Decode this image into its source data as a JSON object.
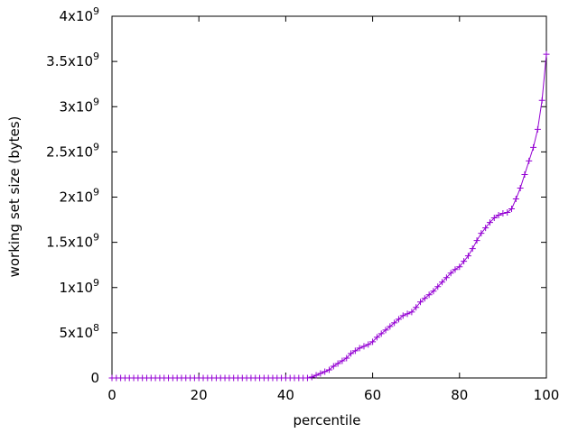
{
  "chart_data": {
    "type": "line",
    "xlabel": "percentile",
    "ylabel": "working set size (bytes)",
    "x": [
      0,
      1,
      2,
      3,
      4,
      5,
      6,
      7,
      8,
      9,
      10,
      11,
      12,
      13,
      14,
      15,
      16,
      17,
      18,
      19,
      20,
      21,
      22,
      23,
      24,
      25,
      26,
      27,
      28,
      29,
      30,
      31,
      32,
      33,
      34,
      35,
      36,
      37,
      38,
      39,
      40,
      41,
      42,
      43,
      44,
      45,
      46,
      47,
      48,
      49,
      50,
      51,
      52,
      53,
      54,
      55,
      56,
      57,
      58,
      59,
      60,
      61,
      62,
      63,
      64,
      65,
      66,
      67,
      68,
      69,
      70,
      71,
      72,
      73,
      74,
      75,
      76,
      77,
      78,
      79,
      80,
      81,
      82,
      83,
      84,
      85,
      86,
      87,
      88,
      89,
      90,
      91,
      92,
      93,
      94,
      95,
      96,
      97,
      98,
      99,
      100
    ],
    "series": [
      {
        "color": "#9400d3",
        "marker": "+",
        "values": [
          0,
          0,
          0,
          0,
          0,
          0,
          0,
          0,
          0,
          0,
          0,
          0,
          0,
          0,
          0,
          0,
          0,
          0,
          0,
          0,
          0,
          0,
          0,
          0,
          0,
          0,
          0,
          0,
          0,
          0,
          0,
          0,
          0,
          0,
          0,
          0,
          0,
          0,
          0,
          0,
          0,
          0,
          0,
          0,
          0,
          0,
          10000000,
          30000000,
          50000000,
          70000000,
          90000000,
          130000000,
          160000000,
          190000000,
          220000000,
          270000000,
          300000000,
          330000000,
          350000000,
          370000000,
          400000000,
          450000000,
          490000000,
          530000000,
          570000000,
          610000000,
          650000000,
          690000000,
          710000000,
          730000000,
          780000000,
          840000000,
          880000000,
          920000000,
          960000000,
          1010000000,
          1060000000,
          1110000000,
          1160000000,
          1200000000,
          1230000000,
          1290000000,
          1350000000,
          1430000000,
          1520000000,
          1600000000,
          1660000000,
          1720000000,
          1770000000,
          1800000000,
          1820000000,
          1830000000,
          1870000000,
          1980000000,
          2100000000,
          2250000000,
          2400000000,
          2550000000,
          2750000000,
          3070000000,
          3580000000
        ]
      }
    ],
    "xlim": [
      0,
      100
    ],
    "xticks": [
      0,
      20,
      40,
      60,
      80,
      100
    ],
    "ylim": [
      0,
      4000000000
    ],
    "yticks": [
      0,
      {
        "value": 500000000,
        "label": "5x10",
        "exponent": "8"
      },
      {
        "value": 1000000000,
        "label": "1x10",
        "exponent": "9"
      },
      {
        "value": 1500000000,
        "label": "1.5x10",
        "exponent": "9"
      },
      {
        "value": 2000000000,
        "label": "2x10",
        "exponent": "9"
      },
      {
        "value": 2500000000,
        "label": "2.5x10",
        "exponent": "9"
      },
      {
        "value": 3000000000,
        "label": "3x10",
        "exponent": "9"
      },
      {
        "value": 3500000000,
        "label": "3.5x10",
        "exponent": "9"
      },
      {
        "value": 4000000000,
        "label": "4x10",
        "exponent": "9"
      }
    ]
  }
}
